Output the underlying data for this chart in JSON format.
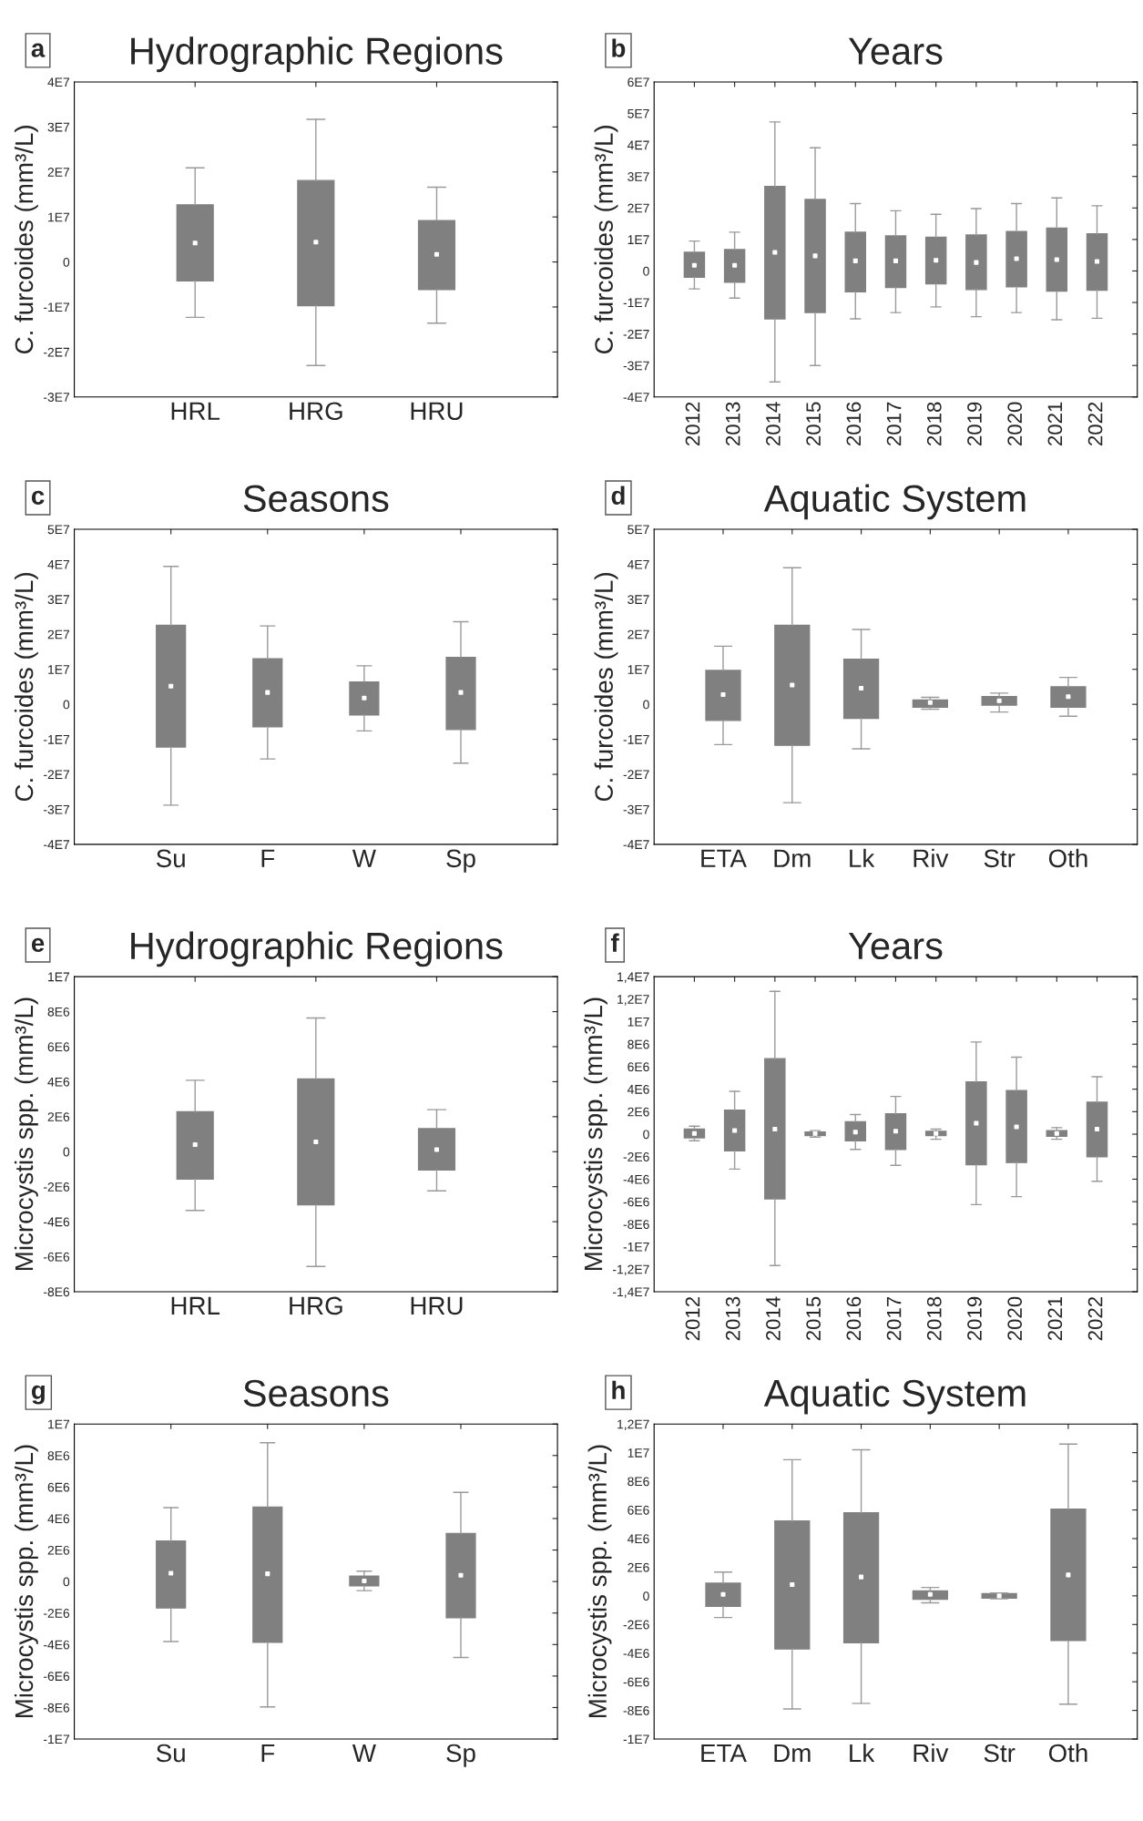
{
  "chart_data": [
    {
      "type": "box",
      "title": "Hydrographic Regions",
      "ylabel": "C. furcoides (mm³/L)",
      "annotations": [
        "a"
      ],
      "color": "#808080",
      "grid": false,
      "categories": [
        "HRL",
        "HRG",
        "HRU"
      ],
      "boxes": [
        {
          "low": -12300000.0,
          "q1": -4200000.0,
          "median": 4200000.0,
          "q3": 12700000.0,
          "high": 20900000.0
        },
        {
          "low": -23000000.0,
          "q1": -9700000.0,
          "median": 4400000.0,
          "q3": 18100000.0,
          "high": 31700000.0
        },
        {
          "low": -13600000.0,
          "q1": -6100000.0,
          "median": 1700000.0,
          "q3": 9200000.0,
          "high": 16600000.0
        }
      ],
      "ylim": [
        -30000000.0,
        40000000.0
      ],
      "yticks": [
        {
          "value": -30000000.0,
          "label": "-3E7"
        },
        {
          "value": -20000000.0,
          "label": "-2E7"
        },
        {
          "value": -10000000.0,
          "label": "-1E7"
        },
        0,
        {
          "value": 10000000.0,
          "label": "1E7"
        },
        {
          "value": 20000000.0,
          "label": "2E7"
        },
        {
          "value": 30000000.0,
          "label": "3E7"
        },
        {
          "value": 40000000.0,
          "label": "4E7"
        }
      ]
    },
    {
      "type": "box",
      "title": "Years",
      "ylabel": "C. furcoides (mm³/L)",
      "annotations": [
        "b"
      ],
      "color": "#808080",
      "grid": false,
      "categories": [
        "2012",
        "2013",
        "2014",
        "2015",
        "2016",
        "2017",
        "2018",
        "2019",
        "2020",
        "2021",
        "2022"
      ],
      "boxes": [
        {
          "low": -5700000.0,
          "q1": -2000000.0,
          "median": 1800000.0,
          "q3": 5900000.0,
          "high": 9500000.0
        },
        {
          "low": -8600000.0,
          "q1": -3600000.0,
          "median": 1800000.0,
          "q3": 6800000.0,
          "high": 12300000.0
        },
        {
          "low": -35200000.0,
          "q1": -15200000.0,
          "median": 5900000.0,
          "q3": 26800000.0,
          "high": 47300000.0
        },
        {
          "low": -30000000.0,
          "q1": -13200000.0,
          "median": 4800000.0,
          "q3": 22700000.0,
          "high": 39100000.0
        },
        {
          "low": -15200000.0,
          "q1": -6600000.0,
          "median": 3200000.0,
          "q3": 12300000.0,
          "high": 21400000.0
        },
        {
          "low": -13200000.0,
          "q1": -5200000.0,
          "median": 3200000.0,
          "q3": 11100000.0,
          "high": 19100000.0
        },
        {
          "low": -11400000.0,
          "q1": -4100000.0,
          "median": 3400000.0,
          "q3": 10700000.0,
          "high": 18000000.0
        },
        {
          "low": -14500000.0,
          "q1": -5900000.0,
          "median": 2700000.0,
          "q3": 11400000.0,
          "high": 19800000.0
        },
        {
          "low": -13200000.0,
          "q1": -5000000.0,
          "median": 3900000.0,
          "q3": 12500000.0,
          "high": 21400000.0
        },
        {
          "low": -15500000.0,
          "q1": -6400000.0,
          "median": 3600000.0,
          "q3": 13600000.0,
          "high": 23200000.0
        },
        {
          "low": -15000000.0,
          "q1": -6100000.0,
          "median": 3000000.0,
          "q3": 11800000.0,
          "high": 20700000.0
        }
      ],
      "ylim": [
        -40000000.0,
        60000000.0
      ],
      "yticks": [
        {
          "value": -40000000.0,
          "label": "-4E7"
        },
        {
          "value": -30000000.0,
          "label": "-3E7"
        },
        {
          "value": -20000000.0,
          "label": "-2E7"
        },
        {
          "value": -10000000.0,
          "label": "-1E7"
        },
        0,
        {
          "value": 10000000.0,
          "label": "1E7"
        },
        {
          "value": 20000000.0,
          "label": "2E7"
        },
        {
          "value": 30000000.0,
          "label": "3E7"
        },
        {
          "value": 40000000.0,
          "label": "4E7"
        },
        {
          "value": 50000000.0,
          "label": "5E7"
        },
        {
          "value": 60000000.0,
          "label": "6E7"
        }
      ]
    },
    {
      "type": "box",
      "title": "Seasons",
      "ylabel": "C. furcoides (mm³/L)",
      "annotations": [
        "c"
      ],
      "color": "#808080",
      "grid": false,
      "categories": [
        "Su",
        "F",
        "W",
        "Sp"
      ],
      "boxes": [
        {
          "low": -28800000.0,
          "q1": -12200000.0,
          "median": 5200000.0,
          "q3": 22600000.0,
          "high": 39400000.0
        },
        {
          "low": -15600000.0,
          "q1": -6400000.0,
          "median": 3400000.0,
          "q3": 13000000.0,
          "high": 22400000.0
        },
        {
          "low": -7600000.0,
          "q1": -3000000.0,
          "median": 1800000.0,
          "q3": 6400000.0,
          "high": 11000000.0
        },
        {
          "low": -16800000.0,
          "q1": -7200000.0,
          "median": 3400000.0,
          "q3": 13400000.0,
          "high": 23600000.0
        }
      ],
      "ylim": [
        -40000000.0,
        50000000.0
      ],
      "yticks": [
        {
          "value": -40000000.0,
          "label": "-4E7"
        },
        {
          "value": -30000000.0,
          "label": "-3E7"
        },
        {
          "value": -20000000.0,
          "label": "-2E7"
        },
        {
          "value": -10000000.0,
          "label": "-1E7"
        },
        0,
        {
          "value": 10000000.0,
          "label": "1E7"
        },
        {
          "value": 20000000.0,
          "label": "2E7"
        },
        {
          "value": 30000000.0,
          "label": "3E7"
        },
        {
          "value": 40000000.0,
          "label": "4E7"
        },
        {
          "value": 50000000.0,
          "label": "5E7"
        }
      ]
    },
    {
      "type": "box",
      "title": "Aquatic System",
      "ylabel": "C. furcoides (mm³/L)",
      "annotations": [
        "d"
      ],
      "color": "#808080",
      "grid": false,
      "categories": [
        "ETA",
        "Dm",
        "Lk",
        "Riv",
        "Str",
        "Oth"
      ],
      "boxes": [
        {
          "low": -11500000.0,
          "q1": -4600000.0,
          "median": 2800000.0,
          "q3": 9700000.0,
          "high": 16600000.0
        },
        {
          "low": -28100000.0,
          "q1": -11700000.0,
          "median": 5500000.0,
          "q3": 22600000.0,
          "high": 39000000.0
        },
        {
          "low": -12700000.0,
          "q1": -4000000.0,
          "median": 4600000.0,
          "q3": 12900000.0,
          "high": 21400000.0
        },
        {
          "low": -1400000.0,
          "q1": -800000.0,
          "median": 500000.0,
          "q3": 1200000.0,
          "high": 2000000.0
        },
        {
          "low": -2200000.0,
          "q1": -200000.0,
          "median": 1000000.0,
          "q3": 2200000.0,
          "high": 3200000.0
        },
        {
          "low": -3400000.0,
          "q1": -800000.0,
          "median": 2200000.0,
          "q3": 5000000.0,
          "high": 7700000.0
        }
      ],
      "ylim": [
        -40000000.0,
        50000000.0
      ],
      "yticks": [
        {
          "value": -40000000.0,
          "label": "-4E7"
        },
        {
          "value": -30000000.0,
          "label": "-3E7"
        },
        {
          "value": -20000000.0,
          "label": "-2E7"
        },
        {
          "value": -10000000.0,
          "label": "-1E7"
        },
        0,
        {
          "value": 10000000.0,
          "label": "1E7"
        },
        {
          "value": 20000000.0,
          "label": "2E7"
        },
        {
          "value": 30000000.0,
          "label": "3E7"
        },
        {
          "value": 40000000.0,
          "label": "4E7"
        },
        {
          "value": 50000000.0,
          "label": "5E7"
        }
      ]
    },
    {
      "type": "box",
      "title": "Hydrographic Regions",
      "ylabel": "Microcystis spp. (mm³/L)",
      "annotations": [
        "e"
      ],
      "color": "#808080",
      "grid": false,
      "categories": [
        "HRL",
        "HRG",
        "HRU"
      ],
      "boxes": [
        {
          "low": -3360000.0,
          "q1": -1560000.0,
          "median": 400000.0,
          "q3": 2280000.0,
          "high": 4080000.0
        },
        {
          "low": -6560000.0,
          "q1": -3040000.0,
          "median": 560000.0,
          "q3": 4160000.0,
          "high": 7640000.0
        },
        {
          "low": -2240000.0,
          "q1": -1040000.0,
          "median": 120000.0,
          "q3": 1320000.0,
          "high": 2400000.0
        }
      ],
      "ylim": [
        -8000000.0,
        10000000.0
      ],
      "yticks": [
        {
          "value": -8000000.0,
          "label": "-8E6"
        },
        {
          "value": -6000000.0,
          "label": "-6E6"
        },
        {
          "value": -4000000.0,
          "label": "-4E6"
        },
        {
          "value": -2000000.0,
          "label": "-2E6"
        },
        0,
        {
          "value": 2000000.0,
          "label": "2E6"
        },
        {
          "value": 4000000.0,
          "label": "4E6"
        },
        {
          "value": 6000000.0,
          "label": "6E6"
        },
        {
          "value": 8000000.0,
          "label": "8E6"
        },
        {
          "value": 10000000.0,
          "label": "1E7"
        }
      ]
    },
    {
      "type": "box",
      "title": "Years",
      "ylabel": "Microcystis spp. (mm³/L)",
      "annotations": [
        "f"
      ],
      "color": "#808080",
      "grid": false,
      "categories": [
        "2012",
        "2013",
        "2014",
        "2015",
        "2016",
        "2017",
        "2018",
        "2019",
        "2020",
        "2021",
        "2022"
      ],
      "boxes": [
        {
          "low": -580000.0,
          "q1": -320000.0,
          "median": 60000.0,
          "q3": 450000.0,
          "high": 710000.0
        },
        {
          "low": -3100000.0,
          "q1": -1480000.0,
          "median": 320000.0,
          "q3": 2130000.0,
          "high": 3810000.0
        },
        {
          "low": -11680000.0,
          "q1": -5740000.0,
          "median": 450000.0,
          "q3": 6710000.0,
          "high": 12700000.0
        },
        {
          "low": -260000.0,
          "q1": -130000.0,
          "median": 60000.0,
          "q3": 190000.0,
          "high": 320000.0
        },
        {
          "low": -1350000.0,
          "q1": -580000.0,
          "median": 190000.0,
          "q3": 1100000.0,
          "high": 1740000.0
        },
        {
          "low": -2770000.0,
          "q1": -1350000.0,
          "median": 260000.0,
          "q3": 1810000.0,
          "high": 3350000.0
        },
        {
          "low": -450000.0,
          "q1": -130000.0,
          "median": 60000.0,
          "q3": 260000.0,
          "high": 450000.0
        },
        {
          "low": -6260000.0,
          "q1": -2710000.0,
          "median": 970000.0,
          "q3": 4650000.0,
          "high": 8190000.0
        },
        {
          "low": -5550000.0,
          "q1": -2520000.0,
          "median": 650000.0,
          "q3": 3870000.0,
          "high": 6840000.0
        },
        {
          "low": -450000.0,
          "q1": -190000.0,
          "median": 60000.0,
          "q3": 320000.0,
          "high": 580000.0
        },
        {
          "low": -4190000.0,
          "q1": -2000000.0,
          "median": 450000.0,
          "q3": 2840000.0,
          "high": 5100000.0
        }
      ],
      "ylim": [
        -14000000.0,
        14000000.0
      ],
      "yticks": [
        {
          "value": -14000000.0,
          "label": "-1,4E7"
        },
        {
          "value": -12000000.0,
          "label": "-1,2E7"
        },
        {
          "value": -10000000.0,
          "label": "-1E7"
        },
        {
          "value": -8000000.0,
          "label": "-8E6"
        },
        {
          "value": -6000000.0,
          "label": "-6E6"
        },
        {
          "value": -4000000.0,
          "label": "-4E6"
        },
        {
          "value": -2000000.0,
          "label": "-2E6"
        },
        0,
        {
          "value": 2000000.0,
          "label": "2E6"
        },
        {
          "value": 4000000.0,
          "label": "4E6"
        },
        {
          "value": 6000000.0,
          "label": "6E6"
        },
        {
          "value": 8000000.0,
          "label": "8E6"
        },
        {
          "value": 10000000.0,
          "label": "1E7"
        },
        {
          "value": 12000000.0,
          "label": "1,2E7"
        },
        {
          "value": 14000000.0,
          "label": "1,4E7"
        }
      ]
    },
    {
      "type": "box",
      "title": "Seasons",
      "ylabel": "Microcystis spp. (mm³/L)",
      "annotations": [
        "g"
      ],
      "color": "#808080",
      "grid": false,
      "categories": [
        "Su",
        "F",
        "W",
        "Sp"
      ],
      "boxes": [
        {
          "low": -3810000.0,
          "q1": -1680000.0,
          "median": 530000.0,
          "q3": 2570000.0,
          "high": 4690000.0
        },
        {
          "low": -7960000.0,
          "q1": -3850000.0,
          "median": 490000.0,
          "q3": 4730000.0,
          "high": 8810000.0
        },
        {
          "low": -580000.0,
          "q1": -270000.0,
          "median": 40000.0,
          "q3": 350000.0,
          "high": 660000.0
        },
        {
          "low": -4820000.0,
          "q1": -2300000.0,
          "median": 400000.0,
          "q3": 3050000.0,
          "high": 5660000.0
        }
      ],
      "ylim": [
        -10000000.0,
        10000000.0
      ],
      "yticks": [
        {
          "value": -10000000.0,
          "label": "-1E7"
        },
        {
          "value": -8000000.0,
          "label": "-8E6"
        },
        {
          "value": -6000000.0,
          "label": "-6E6"
        },
        {
          "value": -4000000.0,
          "label": "-4E6"
        },
        {
          "value": -2000000.0,
          "label": "-2E6"
        },
        0,
        {
          "value": 2000000.0,
          "label": "2E6"
        },
        {
          "value": 4000000.0,
          "label": "4E6"
        },
        {
          "value": 6000000.0,
          "label": "6E6"
        },
        {
          "value": 8000000.0,
          "label": "8E6"
        },
        {
          "value": 10000000.0,
          "label": "1E7"
        }
      ]
    },
    {
      "type": "box",
      "title": "Aquatic System",
      "ylabel": "Microcystis spp. (mm³/L)",
      "annotations": [
        "h"
      ],
      "color": "#808080",
      "grid": false,
      "categories": [
        "ETA",
        "Dm",
        "Lk",
        "Riv",
        "Str",
        "Oth"
      ],
      "boxes": [
        {
          "low": -1510000.0,
          "q1": -730000.0,
          "median": 100000.0,
          "q3": 880000.0,
          "high": 1660000.0
        },
        {
          "low": -7900000.0,
          "q1": -3710000.0,
          "median": 780000.0,
          "q3": 5220000.0,
          "high": 9510000.0
        },
        {
          "low": -7510000.0,
          "q1": -3270000.0,
          "median": 1320000.0,
          "q3": 5800000.0,
          "high": 10200000.0
        },
        {
          "low": -490000.0,
          "q1": -240000.0,
          "median": 100000.0,
          "q3": 340000.0,
          "high": 590000.0
        },
        {
          "low": -200000.0,
          "q1": -150000.0,
          "median": 0,
          "q3": 150000.0,
          "high": 200000.0
        },
        {
          "low": -7560000.0,
          "q1": -3120000.0,
          "median": 1460000.0,
          "q3": 6050000.0,
          "high": 10600000.0
        }
      ],
      "ylim": [
        -10000000.0,
        12000000.0
      ],
      "yticks": [
        {
          "value": -10000000.0,
          "label": "-1E7"
        },
        {
          "value": -8000000.0,
          "label": "-8E6"
        },
        {
          "value": -6000000.0,
          "label": "-6E6"
        },
        {
          "value": -4000000.0,
          "label": "-4E6"
        },
        {
          "value": -2000000.0,
          "label": "-2E6"
        },
        0,
        {
          "value": 2000000.0,
          "label": "2E6"
        },
        {
          "value": 4000000.0,
          "label": "4E6"
        },
        {
          "value": 6000000.0,
          "label": "6E6"
        },
        {
          "value": 8000000.0,
          "label": "8E6"
        },
        {
          "value": 10000000.0,
          "label": "1E7"
        },
        {
          "value": 12000000.0,
          "label": "1,2E7"
        }
      ]
    }
  ]
}
